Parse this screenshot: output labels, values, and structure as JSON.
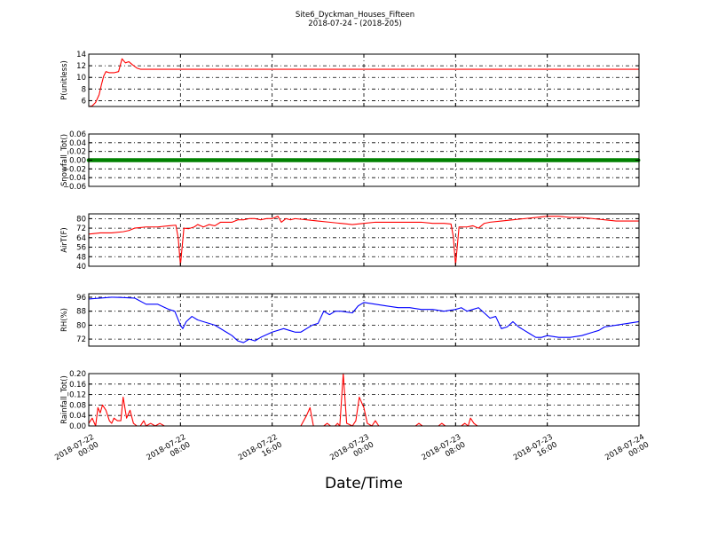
{
  "chart_data": {
    "type": "line",
    "title": "Site6_Dyckman_Houses_Fifteen",
    "subtitle": "2018-07-24 - (2018-205)",
    "xlabel": "Date/Time",
    "x_ticks": [
      {
        "line1": "2018-07-22",
        "line2": "00:00"
      },
      {
        "line1": "2018-07-22",
        "line2": "08:00"
      },
      {
        "line1": "2018-07-22",
        "line2": "16:00"
      },
      {
        "line1": "2018-07-23",
        "line2": "00:00"
      },
      {
        "line1": "2018-07-23",
        "line2": "08:00"
      },
      {
        "line1": "2018-07-23",
        "line2": "16:00"
      },
      {
        "line1": "2018-07-24",
        "line2": "00:00"
      }
    ],
    "x_range_hours": [
      0,
      48
    ],
    "grid": true,
    "panels": [
      {
        "ylabel": "P(unitless)",
        "ylim": [
          5,
          14
        ],
        "yticks": [
          "6",
          "8",
          "10",
          "12",
          "14"
        ],
        "series": [
          {
            "color": "#ff0000",
            "marker": "line",
            "points": [
              [
                0,
                5
              ],
              [
                0.3,
                5.1
              ],
              [
                0.6,
                5.7
              ],
              [
                0.9,
                7
              ],
              [
                1.1,
                8.7
              ],
              [
                1.3,
                10.2
              ],
              [
                1.5,
                11
              ],
              [
                1.8,
                10.8
              ],
              [
                2.2,
                10.8
              ],
              [
                2.6,
                11
              ],
              [
                2.9,
                13.2
              ],
              [
                3.2,
                12.5
              ],
              [
                3.5,
                12.7
              ],
              [
                3.8,
                12.2
              ],
              [
                4.2,
                11.6
              ],
              [
                4.5,
                11.4
              ],
              [
                48,
                11.4
              ]
            ]
          }
        ]
      },
      {
        "ylabel": "Snowfall_Tot()",
        "ylim": [
          -0.06,
          0.06
        ],
        "yticks": [
          "−0.06",
          "−0.04",
          "−0.02",
          "0.00",
          "0.02",
          "0.04",
          "0.06"
        ],
        "series": [
          {
            "color": "#008000",
            "marker": "dots",
            "points": [
              [
                0,
                0
              ],
              [
                48,
                0
              ]
            ]
          }
        ]
      },
      {
        "ylabel": "AirT(F)",
        "ylim": [
          40,
          84
        ],
        "yticks": [
          "40",
          "48",
          "56",
          "64",
          "72",
          "80"
        ],
        "series": [
          {
            "color": "#ff0000",
            "marker": "line",
            "points": [
              [
                0,
                67
              ],
              [
                1,
                68
              ],
              [
                2,
                68
              ],
              [
                3,
                69
              ],
              [
                3.5,
                70
              ],
              [
                4,
                72
              ],
              [
                5,
                73
              ],
              [
                6,
                73
              ],
              [
                7,
                74
              ],
              [
                7.6,
                74.5
              ],
              [
                7.8,
                64
              ],
              [
                8,
                41
              ],
              [
                8.3,
                72
              ],
              [
                8.7,
                71.5
              ],
              [
                9.2,
                73
              ],
              [
                9.5,
                75
              ],
              [
                10,
                73
              ],
              [
                10.5,
                75
              ],
              [
                11,
                74
              ],
              [
                11.5,
                77
              ],
              [
                12,
                77
              ],
              [
                12.5,
                77
              ],
              [
                13,
                79
              ],
              [
                13.5,
                79
              ],
              [
                14,
                80
              ],
              [
                14.5,
                80
              ],
              [
                15,
                79
              ],
              [
                15.5,
                80
              ],
              [
                16,
                80
              ],
              [
                16.5,
                82
              ],
              [
                16.8,
                77
              ],
              [
                17.2,
                80
              ],
              [
                17.6,
                79
              ],
              [
                18,
                80
              ],
              [
                19,
                79
              ],
              [
                20,
                78
              ],
              [
                21,
                77
              ],
              [
                22,
                76
              ],
              [
                23,
                75
              ],
              [
                24,
                76
              ],
              [
                25,
                77
              ],
              [
                26,
                77
              ],
              [
                27,
                77
              ],
              [
                28,
                77
              ],
              [
                29,
                77
              ],
              [
                30,
                76
              ],
              [
                31,
                76
              ],
              [
                31.6,
                75.5
              ],
              [
                31.8,
                65
              ],
              [
                32,
                41
              ],
              [
                32.3,
                73
              ],
              [
                33,
                73
              ],
              [
                33.5,
                74
              ],
              [
                34,
                72
              ],
              [
                34.5,
                76
              ],
              [
                35,
                77
              ],
              [
                36,
                78
              ],
              [
                37,
                79
              ],
              [
                38,
                80
              ],
              [
                39,
                81
              ],
              [
                40,
                82
              ],
              [
                41,
                82
              ],
              [
                42,
                81
              ],
              [
                43,
                81
              ],
              [
                44,
                80
              ],
              [
                45,
                79
              ],
              [
                46,
                78
              ],
              [
                47,
                78
              ],
              [
                48,
                78
              ]
            ]
          }
        ]
      },
      {
        "ylabel": "RH(%)",
        "ylim": [
          68,
          98
        ],
        "yticks": [
          "72",
          "80",
          "88",
          "96"
        ],
        "series": [
          {
            "color": "#0000ff",
            "marker": "line",
            "points": [
              [
                0,
                95
              ],
              [
                1,
                95.5
              ],
              [
                2,
                96
              ],
              [
                3,
                95.8
              ],
              [
                4,
                95.5
              ],
              [
                5,
                92
              ],
              [
                6,
                92
              ],
              [
                7,
                89
              ],
              [
                7.5,
                88
              ],
              [
                8,
                80
              ],
              [
                8.2,
                78
              ],
              [
                8.5,
                82
              ],
              [
                9,
                85
              ],
              [
                9.5,
                83
              ],
              [
                10,
                82
              ],
              [
                11,
                80
              ],
              [
                12,
                76
              ],
              [
                12.5,
                74
              ],
              [
                13,
                71
              ],
              [
                13.5,
                70
              ],
              [
                14,
                72
              ],
              [
                14.5,
                71
              ],
              [
                15,
                73
              ],
              [
                16,
                76
              ],
              [
                17,
                78
              ],
              [
                17.5,
                77
              ],
              [
                18,
                76
              ],
              [
                18.5,
                76
              ],
              [
                19,
                78
              ],
              [
                19.5,
                80
              ],
              [
                20,
                81
              ],
              [
                20.5,
                88
              ],
              [
                21,
                86
              ],
              [
                21.5,
                88
              ],
              [
                22,
                88
              ],
              [
                23,
                87
              ],
              [
                23.5,
                91
              ],
              [
                24,
                93
              ],
              [
                25,
                92
              ],
              [
                26,
                91
              ],
              [
                27,
                90
              ],
              [
                28,
                90
              ],
              [
                29,
                89
              ],
              [
                30,
                89
              ],
              [
                31,
                88
              ],
              [
                32,
                89
              ],
              [
                32.5,
                90
              ],
              [
                33,
                88
              ],
              [
                33.5,
                89
              ],
              [
                34,
                90
              ],
              [
                34.5,
                87
              ],
              [
                35,
                84
              ],
              [
                35.5,
                85
              ],
              [
                36,
                78
              ],
              [
                36.5,
                79
              ],
              [
                37,
                82
              ],
              [
                37.5,
                79
              ],
              [
                38,
                77
              ],
              [
                38.5,
                75
              ],
              [
                39,
                73
              ],
              [
                39.5,
                73
              ],
              [
                40,
                74
              ],
              [
                41,
                73
              ],
              [
                42,
                73
              ],
              [
                43,
                74
              ],
              [
                44,
                76
              ],
              [
                44.5,
                77
              ],
              [
                45,
                79
              ],
              [
                46,
                80
              ],
              [
                47,
                81
              ],
              [
                48,
                82
              ]
            ]
          }
        ]
      },
      {
        "ylabel": "Rainfall_Tot()",
        "ylim": [
          0,
          0.2
        ],
        "yticks": [
          "0.00",
          "0.04",
          "0.08",
          "0.12",
          "0.16",
          "0.20"
        ],
        "series": [
          {
            "color": "#ff0000",
            "marker": "line",
            "points": [
              [
                0,
                0.01
              ],
              [
                0.3,
                0.03
              ],
              [
                0.6,
                0
              ],
              [
                0.8,
                0.07
              ],
              [
                1,
                0.05
              ],
              [
                1.2,
                0.08
              ],
              [
                1.5,
                0.06
              ],
              [
                1.8,
                0.02
              ],
              [
                2,
                0.01
              ],
              [
                2.2,
                0.03
              ],
              [
                2.5,
                0.02
              ],
              [
                2.8,
                0.02
              ],
              [
                3,
                0.11
              ],
              [
                3.3,
                0.03
              ],
              [
                3.6,
                0.06
              ],
              [
                3.9,
                0.01
              ],
              [
                4.2,
                0
              ],
              [
                4.5,
                0
              ],
              [
                4.8,
                0.02
              ],
              [
                5,
                0
              ],
              [
                5.4,
                0.01
              ],
              [
                5.8,
                0
              ],
              [
                6.2,
                0.01
              ],
              [
                6.6,
                0
              ],
              [
                18.5,
                0
              ],
              [
                19,
                0.04
              ],
              [
                19.3,
                0.07
              ],
              [
                19.6,
                0
              ],
              [
                20.5,
                0
              ],
              [
                20.8,
                0.01
              ],
              [
                21.1,
                0
              ],
              [
                21.5,
                0
              ],
              [
                21.7,
                0.01
              ],
              [
                21.9,
                0
              ],
              [
                22.2,
                0.2
              ],
              [
                22.5,
                0.01
              ],
              [
                23,
                0
              ],
              [
                23.3,
                0.02
              ],
              [
                23.6,
                0.11
              ],
              [
                24,
                0.07
              ],
              [
                24.3,
                0.01
              ],
              [
                24.7,
                0
              ],
              [
                25,
                0.02
              ],
              [
                25.3,
                0
              ],
              [
                28.5,
                0
              ],
              [
                28.8,
                0.01
              ],
              [
                29.1,
                0
              ],
              [
                30.5,
                0
              ],
              [
                30.8,
                0.01
              ],
              [
                31.1,
                0
              ],
              [
                32.5,
                0
              ],
              [
                32.8,
                0.01
              ],
              [
                33.1,
                0
              ],
              [
                33.3,
                0.03
              ],
              [
                33.6,
                0.01
              ],
              [
                33.9,
                0
              ],
              [
                48,
                0
              ]
            ]
          }
        ]
      }
    ]
  }
}
